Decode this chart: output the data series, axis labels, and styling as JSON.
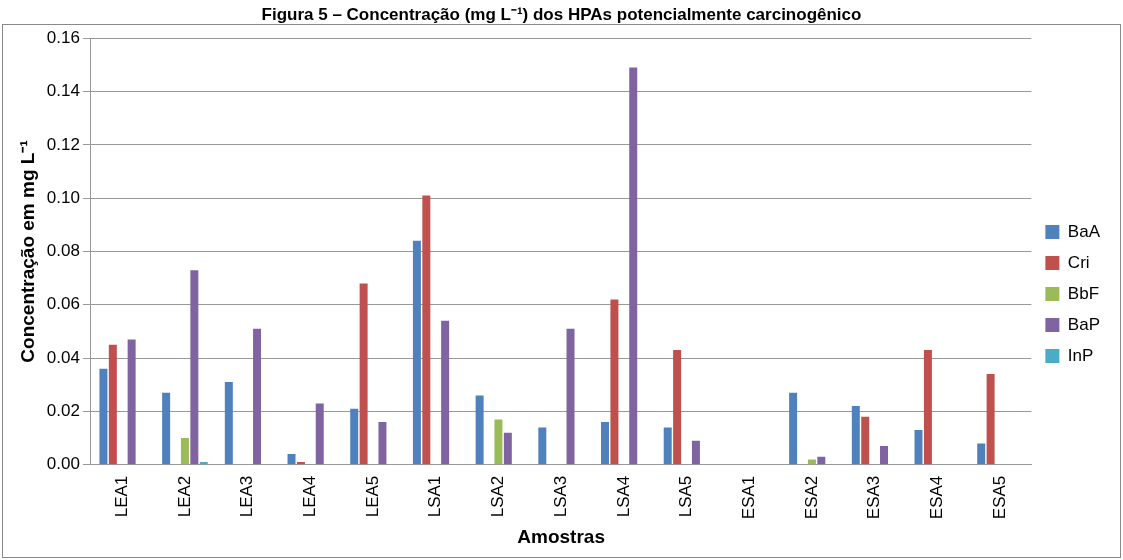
{
  "chart_data": {
    "type": "bar",
    "title": "Figura 5 – Concentração (mg L⁻¹) dos HPAs potencialmente carcinogênico",
    "xlabel": "Amostras",
    "ylabel": "Concentração em mg L⁻¹",
    "categories": [
      "LEA1",
      "LEA2",
      "LEA3",
      "LEA4",
      "LEA5",
      "LSA1",
      "LSA2",
      "LSA3",
      "LSA4",
      "LSA5",
      "ESA1",
      "ESA2",
      "ESA3",
      "ESA4",
      "ESA5"
    ],
    "series": [
      {
        "name": "BaA",
        "color": "#4f81bd",
        "values": [
          0.036,
          0.027,
          0.031,
          0.004,
          0.021,
          0.084,
          0.026,
          0.014,
          0.016,
          0.014,
          0,
          0.027,
          0.022,
          0.013,
          0.008
        ]
      },
      {
        "name": "Cri",
        "color": "#c0504d",
        "values": [
          0.045,
          0,
          0,
          0.001,
          0.068,
          0.101,
          0,
          0,
          0.062,
          0.043,
          0,
          0,
          0.018,
          0.043,
          0.034
        ]
      },
      {
        "name": "BbF",
        "color": "#9bbb59",
        "values": [
          0,
          0.01,
          0,
          0,
          0,
          0,
          0.017,
          0,
          0,
          0,
          0,
          0.002,
          0,
          0,
          0
        ]
      },
      {
        "name": "BaP",
        "color": "#8064a2",
        "values": [
          0.047,
          0.073,
          0.051,
          0.023,
          0.016,
          0.054,
          0.012,
          0.051,
          0.149,
          0.009,
          0,
          0.003,
          0.007,
          0,
          0
        ]
      },
      {
        "name": "InP",
        "color": "#4bacc6",
        "values": [
          0,
          0.001,
          0,
          0,
          0,
          0,
          0,
          0,
          0,
          0,
          0,
          0,
          0,
          0,
          0
        ]
      }
    ],
    "ylim": [
      0,
      0.16
    ],
    "yticks": [
      {
        "value": 0,
        "label": "0.00"
      },
      {
        "value": 0.02,
        "label": "0.02"
      },
      {
        "value": 0.04,
        "label": "0.04"
      },
      {
        "value": 0.06,
        "label": "0.06"
      },
      {
        "value": 0.08,
        "label": "0.08"
      },
      {
        "value": 0.1,
        "label": "0.10"
      },
      {
        "value": 0.12,
        "label": "0.12"
      },
      {
        "value": 0.14,
        "label": "0.14"
      },
      {
        "value": 0.16,
        "label": "0.16"
      }
    ],
    "grid": "y",
    "legend": "right"
  }
}
